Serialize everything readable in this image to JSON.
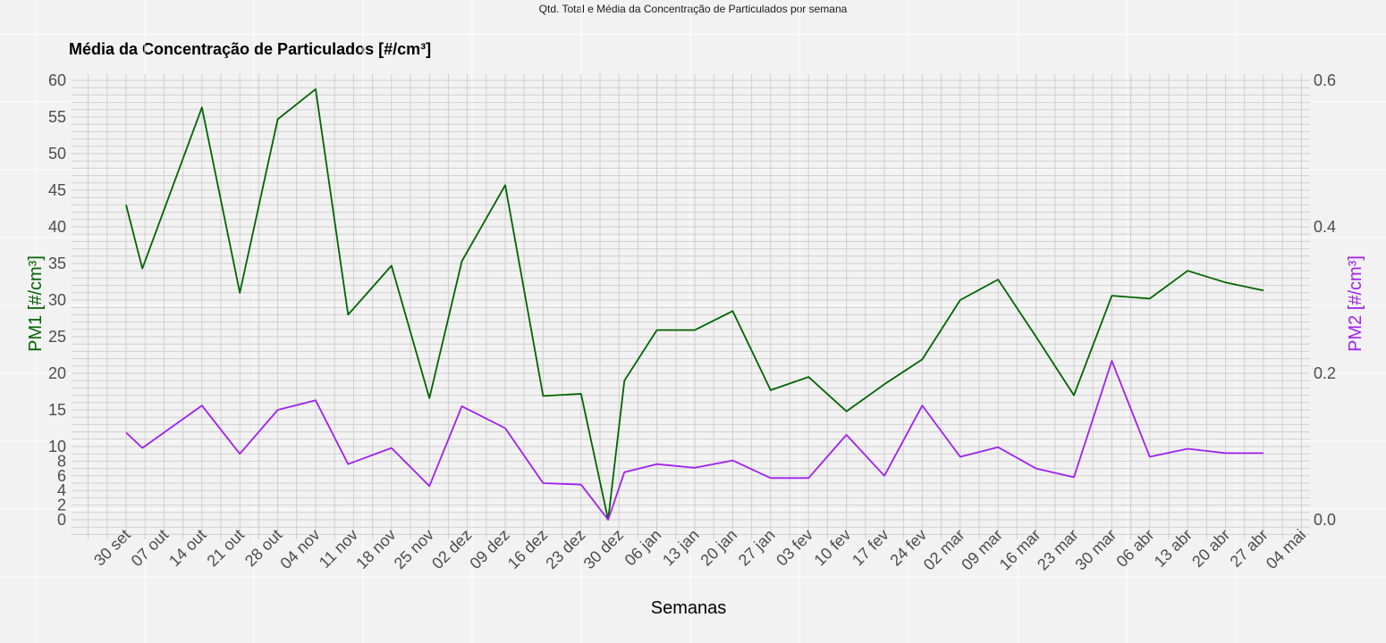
{
  "figure_title": "Qtd. Total e Média da Concentração de Particulados por semana",
  "colors": {
    "pm1": "#006400",
    "pm2": "#a020f0",
    "background": "#f2f2f2",
    "grid": "#cfcfcf"
  },
  "chart_data": {
    "type": "line",
    "title": "Média da Concentração de Particulados [#/cm³]",
    "xlabel": "Semanas",
    "ylabel_left": "PM1 [#/cm³]",
    "ylabel_right": "PM2 [#/cm³]",
    "categories": [
      "30 set",
      "07 out",
      "14 out",
      "21 out",
      "28 out",
      "04 nov",
      "11 nov",
      "18 nov",
      "25 nov",
      "02 dez",
      "09 dez",
      "16 dez",
      "23 dez",
      "30 dez",
      "06 jan",
      "13 jan",
      "20 jan",
      "27 jan",
      "03 fev",
      "10 fev",
      "17 fev",
      "24 fev",
      "02 mar",
      "09 mar",
      "16 mar",
      "23 mar",
      "30 mar",
      "06 abr",
      "13 abr",
      "20 abr",
      "27 abr",
      "04 mai"
    ],
    "ylim_left": [
      0,
      60
    ],
    "yticks_left": [
      0,
      2,
      4,
      6,
      8,
      10,
      15,
      20,
      25,
      30,
      35,
      40,
      45,
      50,
      55,
      60
    ],
    "ylim_right": [
      0,
      0.6
    ],
    "yticks_right": [
      "0.0",
      "0.2",
      "0.4",
      "0.6"
    ],
    "series": [
      {
        "name": "PM1",
        "axis": "left",
        "x": [
          "30 set",
          "03 out",
          "14 out",
          "21 out",
          "28 out",
          "04 nov",
          "10 nov",
          "18 nov",
          "25 nov",
          "01 dez",
          "09 dez",
          "16 dez",
          "23 dez",
          "28 dez",
          "31 dez",
          "06 jan",
          "13 jan",
          "20 jan",
          "27 jan",
          "03 fev",
          "10 fev",
          "17 fev",
          "24 fev",
          "02 mar",
          "09 mar",
          "16 mar",
          "23 mar",
          "30 mar",
          "06 abr",
          "13 abr",
          "20 abr",
          "27 abr"
        ],
        "values": [
          43.0,
          34.3,
          56.3,
          31.0,
          54.7,
          58.8,
          28.0,
          34.7,
          16.6,
          35.3,
          45.7,
          16.9,
          17.2,
          0.0,
          19.0,
          25.9,
          25.9,
          28.5,
          17.7,
          19.5,
          14.8,
          18.5,
          21.9,
          30.0,
          32.8,
          25.0,
          17.0,
          30.6,
          30.2,
          34.0,
          32.4,
          31.3
        ]
      },
      {
        "name": "PM2",
        "axis": "right",
        "x": [
          "30 set",
          "03 out",
          "14 out",
          "21 out",
          "28 out",
          "04 nov",
          "10 nov",
          "18 nov",
          "25 nov",
          "01 dez",
          "09 dez",
          "16 dez",
          "23 dez",
          "28 dez",
          "31 dez",
          "06 jan",
          "13 jan",
          "20 jan",
          "27 jan",
          "03 fev",
          "10 fev",
          "17 fev",
          "24 fev",
          "02 mar",
          "09 mar",
          "16 mar",
          "23 mar",
          "30 mar",
          "06 abr",
          "13 abr",
          "20 abr",
          "27 abr"
        ],
        "values": [
          0.119,
          0.098,
          0.156,
          0.09,
          0.15,
          0.163,
          0.076,
          0.098,
          0.046,
          0.155,
          0.125,
          0.05,
          0.048,
          0.0,
          0.065,
          0.076,
          0.071,
          0.081,
          0.057,
          0.057,
          0.116,
          0.06,
          0.156,
          0.086,
          0.099,
          0.07,
          0.058,
          0.217,
          0.086,
          0.097,
          0.091,
          0.091
        ]
      }
    ]
  }
}
